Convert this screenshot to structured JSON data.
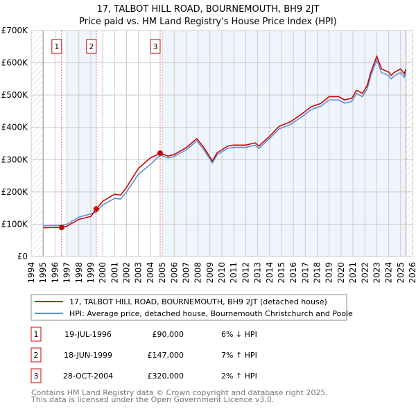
{
  "chart_data": {
    "type": "line",
    "title": "17, TALBOT HILL ROAD, BOURNEMOUTH, BH9 2JT",
    "subtitle": "Price paid vs. HM Land Registry's House Price Index (HPI)",
    "xlim": [
      1994,
      2026
    ],
    "ylim": [
      0,
      700000
    ],
    "x_ticks": [
      "1994",
      "1995",
      "1996",
      "1997",
      "1998",
      "1999",
      "2000",
      "2001",
      "2002",
      "2003",
      "2004",
      "2005",
      "2006",
      "2007",
      "2008",
      "2009",
      "2010",
      "2011",
      "2012",
      "2013",
      "2014",
      "2015",
      "2016",
      "2017",
      "2018",
      "2019",
      "2020",
      "2021",
      "2022",
      "2023",
      "2024",
      "2025",
      "2026"
    ],
    "y_ticks": [
      {
        "v": 0,
        "label": "£0"
      },
      {
        "v": 100000,
        "label": "£100K"
      },
      {
        "v": 200000,
        "label": "£200K"
      },
      {
        "v": 300000,
        "label": "£300K"
      },
      {
        "v": 400000,
        "label": "£400K"
      },
      {
        "v": 500000,
        "label": "£500K"
      },
      {
        "v": 600000,
        "label": "£600K"
      },
      {
        "v": 700000,
        "label": "£700K"
      }
    ],
    "grid": true,
    "x": [
      1995,
      1996.55,
      1997,
      1998,
      1999,
      1999.46,
      2000,
      2001,
      2001.5,
      2002,
      2003,
      2004,
      2004.82,
      2005.5,
      2006,
      2007,
      2007.9,
      2008.5,
      2009.2,
      2009.6,
      2010.5,
      2011,
      2012,
      2012.8,
      2013.1,
      2014,
      2014.8,
      2015.8,
      2016.8,
      2017.5,
      2018.3,
      2019,
      2019.8,
      2020.3,
      2020.9,
      2021.3,
      2021.8,
      2022.2,
      2022.5,
      2023.0,
      2023.4,
      2024.0,
      2024.2,
      2024.5,
      2025.0,
      2025.3,
      2025.45
    ],
    "series": [
      {
        "name": "17, TALBOT HILL ROAD, BOURNEMOUTH, BH9 2JT (detached house)",
        "color": "#cc0000",
        "values": [
          89000,
          90000,
          94000,
          115000,
          124000,
          147000,
          171000,
          193000,
          190000,
          214000,
          273000,
          305000,
          320000,
          311000,
          316000,
          337000,
          365000,
          337000,
          296000,
          321000,
          342000,
          345000,
          345000,
          352000,
          342000,
          372000,
          403000,
          418000,
          444000,
          464000,
          474000,
          495000,
          495000,
          485000,
          490000,
          515000,
          505000,
          530000,
          571000,
          620000,
          581000,
          571000,
          561000,
          571000,
          581000,
          566000,
          581000
        ]
      },
      {
        "name": "HPI: Average price, detached house, Bournemouth Christchurch and Poole",
        "color": "#5b8fd4",
        "values": [
          95000,
          96000,
          100000,
          122000,
          132000,
          137000,
          160000,
          180000,
          178000,
          200000,
          255000,
          285000,
          314000,
          305000,
          310000,
          330000,
          358000,
          330000,
          290000,
          315000,
          335000,
          338000,
          338000,
          345000,
          335000,
          365000,
          395000,
          410000,
          435000,
          455000,
          465000,
          485000,
          485000,
          475000,
          480000,
          505000,
          495000,
          520000,
          560000,
          608000,
          570000,
          560000,
          550000,
          560000,
          570000,
          555000,
          570000
        ]
      }
    ],
    "sales": [
      {
        "n": "1",
        "x": 1996.55,
        "price": 90000,
        "date": "19-JUL-1996",
        "price_label": "£90,000",
        "hpi": "6% ↓ HPI"
      },
      {
        "n": "2",
        "x": 1999.46,
        "price": 147000,
        "date": "18-JUN-1999",
        "price_label": "£147,000",
        "hpi": "7% ↑ HPI"
      },
      {
        "n": "3",
        "x": 2004.82,
        "price": 320000,
        "date": "28-OCT-2004",
        "price_label": "£320,000",
        "hpi": "2% ↑ HPI"
      }
    ],
    "shaded_ranges": [
      [
        1997,
        1999.46
      ],
      [
        2005,
        2025.45
      ]
    ],
    "hatched_ranges": [
      [
        1994,
        1995
      ],
      [
        2025.45,
        2026
      ]
    ],
    "legend_placement": "bottom"
  },
  "footer": {
    "line1": "Contains HM Land Registry data © Crown copyright and database right 2025.",
    "line2": "This data is licensed under the Open Government Licence v3.0."
  }
}
